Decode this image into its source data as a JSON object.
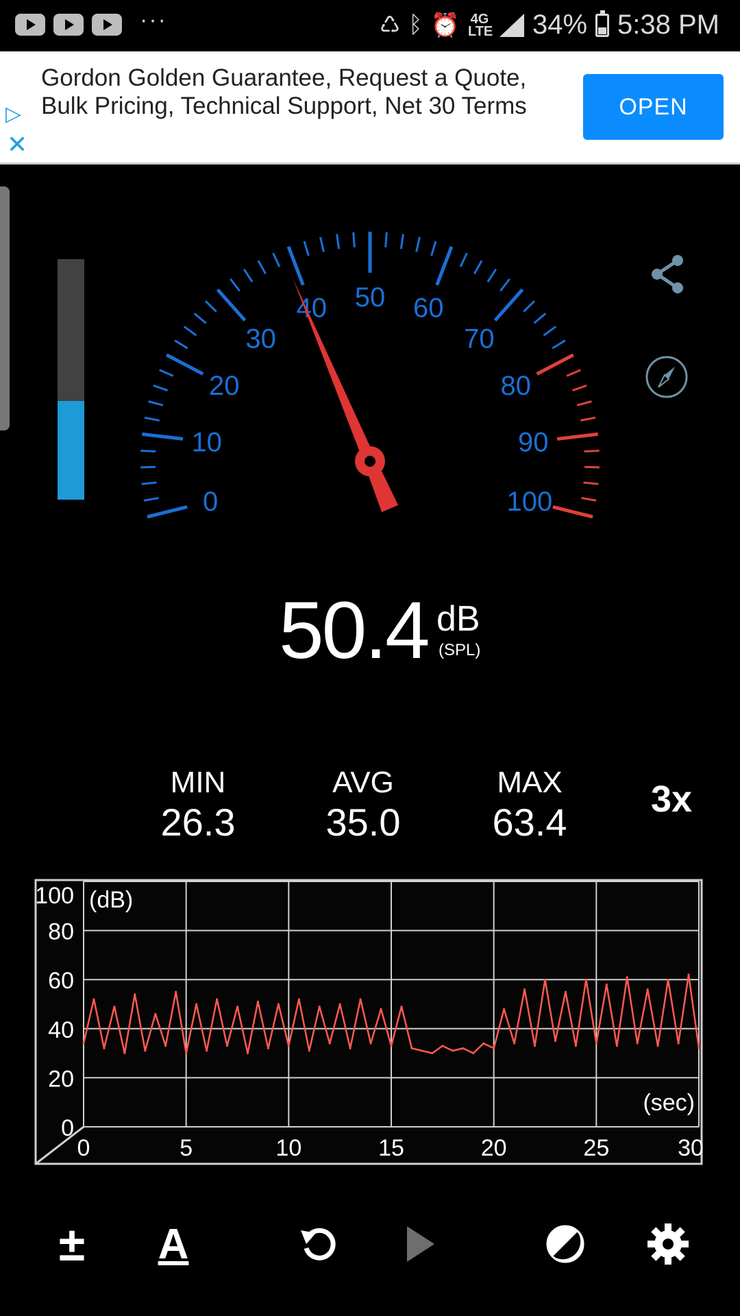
{
  "status_bar": {
    "left_icons": [
      "youtube-icon",
      "youtube-icon",
      "youtube-icon",
      "more-dots-icon"
    ],
    "overflow": "···",
    "network": "4G LTE",
    "battery": "34%",
    "time": "5:38 PM"
  },
  "ad": {
    "text": "Gordon Golden Guarantee, Request a Quote, Bulk Pricing, Technical Support, Net 30 Terms",
    "button": "OPEN"
  },
  "level_meter": {
    "fill_fraction": 0.41,
    "color": "#1e9ad6"
  },
  "gauge": {
    "labels": [
      "0",
      "10",
      "20",
      "30",
      "40",
      "50",
      "60",
      "70",
      "80",
      "90",
      "100"
    ],
    "needle_value": 39,
    "warning_from": 80,
    "scale_color": "#1a6fd6",
    "warning_color": "#e0413a",
    "needle_color": "#e03535"
  },
  "reading": {
    "value": "50.4",
    "unit": "dB",
    "sub_unit": "(SPL)"
  },
  "stats": {
    "min_label": "MIN",
    "min_value": "26.3",
    "avg_label": "AVG",
    "avg_value": "35.0",
    "max_label": "MAX",
    "max_value": "63.4",
    "multiplier": "3x"
  },
  "chart_data": {
    "type": "line",
    "y_unit_label": "(dB)",
    "x_unit_label": "(sec)",
    "xlim": [
      0,
      30
    ],
    "ylim": [
      0,
      100
    ],
    "x_ticks": [
      "0",
      "5",
      "10",
      "15",
      "20",
      "25",
      "30"
    ],
    "y_ticks": [
      "100",
      "80",
      "60",
      "40",
      "20",
      "0"
    ],
    "grid": true,
    "series": [
      {
        "color": "#ff5a50",
        "x": [
          0.0,
          0.5,
          1.0,
          1.5,
          2.0,
          2.5,
          3.0,
          3.5,
          4.0,
          4.5,
          5.0,
          5.5,
          6.0,
          6.5,
          7.0,
          7.5,
          8.0,
          8.5,
          9.0,
          9.5,
          10.0,
          10.5,
          11.0,
          11.5,
          12.0,
          12.5,
          13.0,
          13.5,
          14.0,
          14.5,
          15.0,
          15.5,
          16.0,
          16.5,
          17.0,
          17.5,
          18.0,
          18.5,
          19.0,
          19.5,
          20.0,
          20.5,
          21.0,
          21.5,
          22.0,
          22.5,
          23.0,
          23.5,
          24.0,
          24.5,
          25.0,
          25.5,
          26.0,
          26.5,
          27.0,
          27.5,
          28.0,
          28.5,
          29.0,
          29.5,
          30.0
        ],
        "values": [
          34,
          52,
          32,
          49,
          30,
          54,
          31,
          46,
          33,
          55,
          30,
          50,
          31,
          52,
          33,
          49,
          30,
          51,
          32,
          50,
          33,
          52,
          31,
          49,
          34,
          50,
          32,
          52,
          34,
          48,
          33,
          49,
          32,
          31,
          30,
          33,
          31,
          32,
          30,
          34,
          32,
          48,
          34,
          56,
          33,
          60,
          35,
          55,
          33,
          60,
          34,
          58,
          33,
          61,
          34,
          56,
          33,
          60,
          34,
          62,
          32
        ]
      }
    ]
  },
  "toolbar": {
    "calibrate_label": "±",
    "font_label": "A",
    "reset_icon": "reset-icon",
    "play_icon": "play-icon",
    "contrast_icon": "contrast-icon",
    "settings_icon": "gear-icon"
  }
}
